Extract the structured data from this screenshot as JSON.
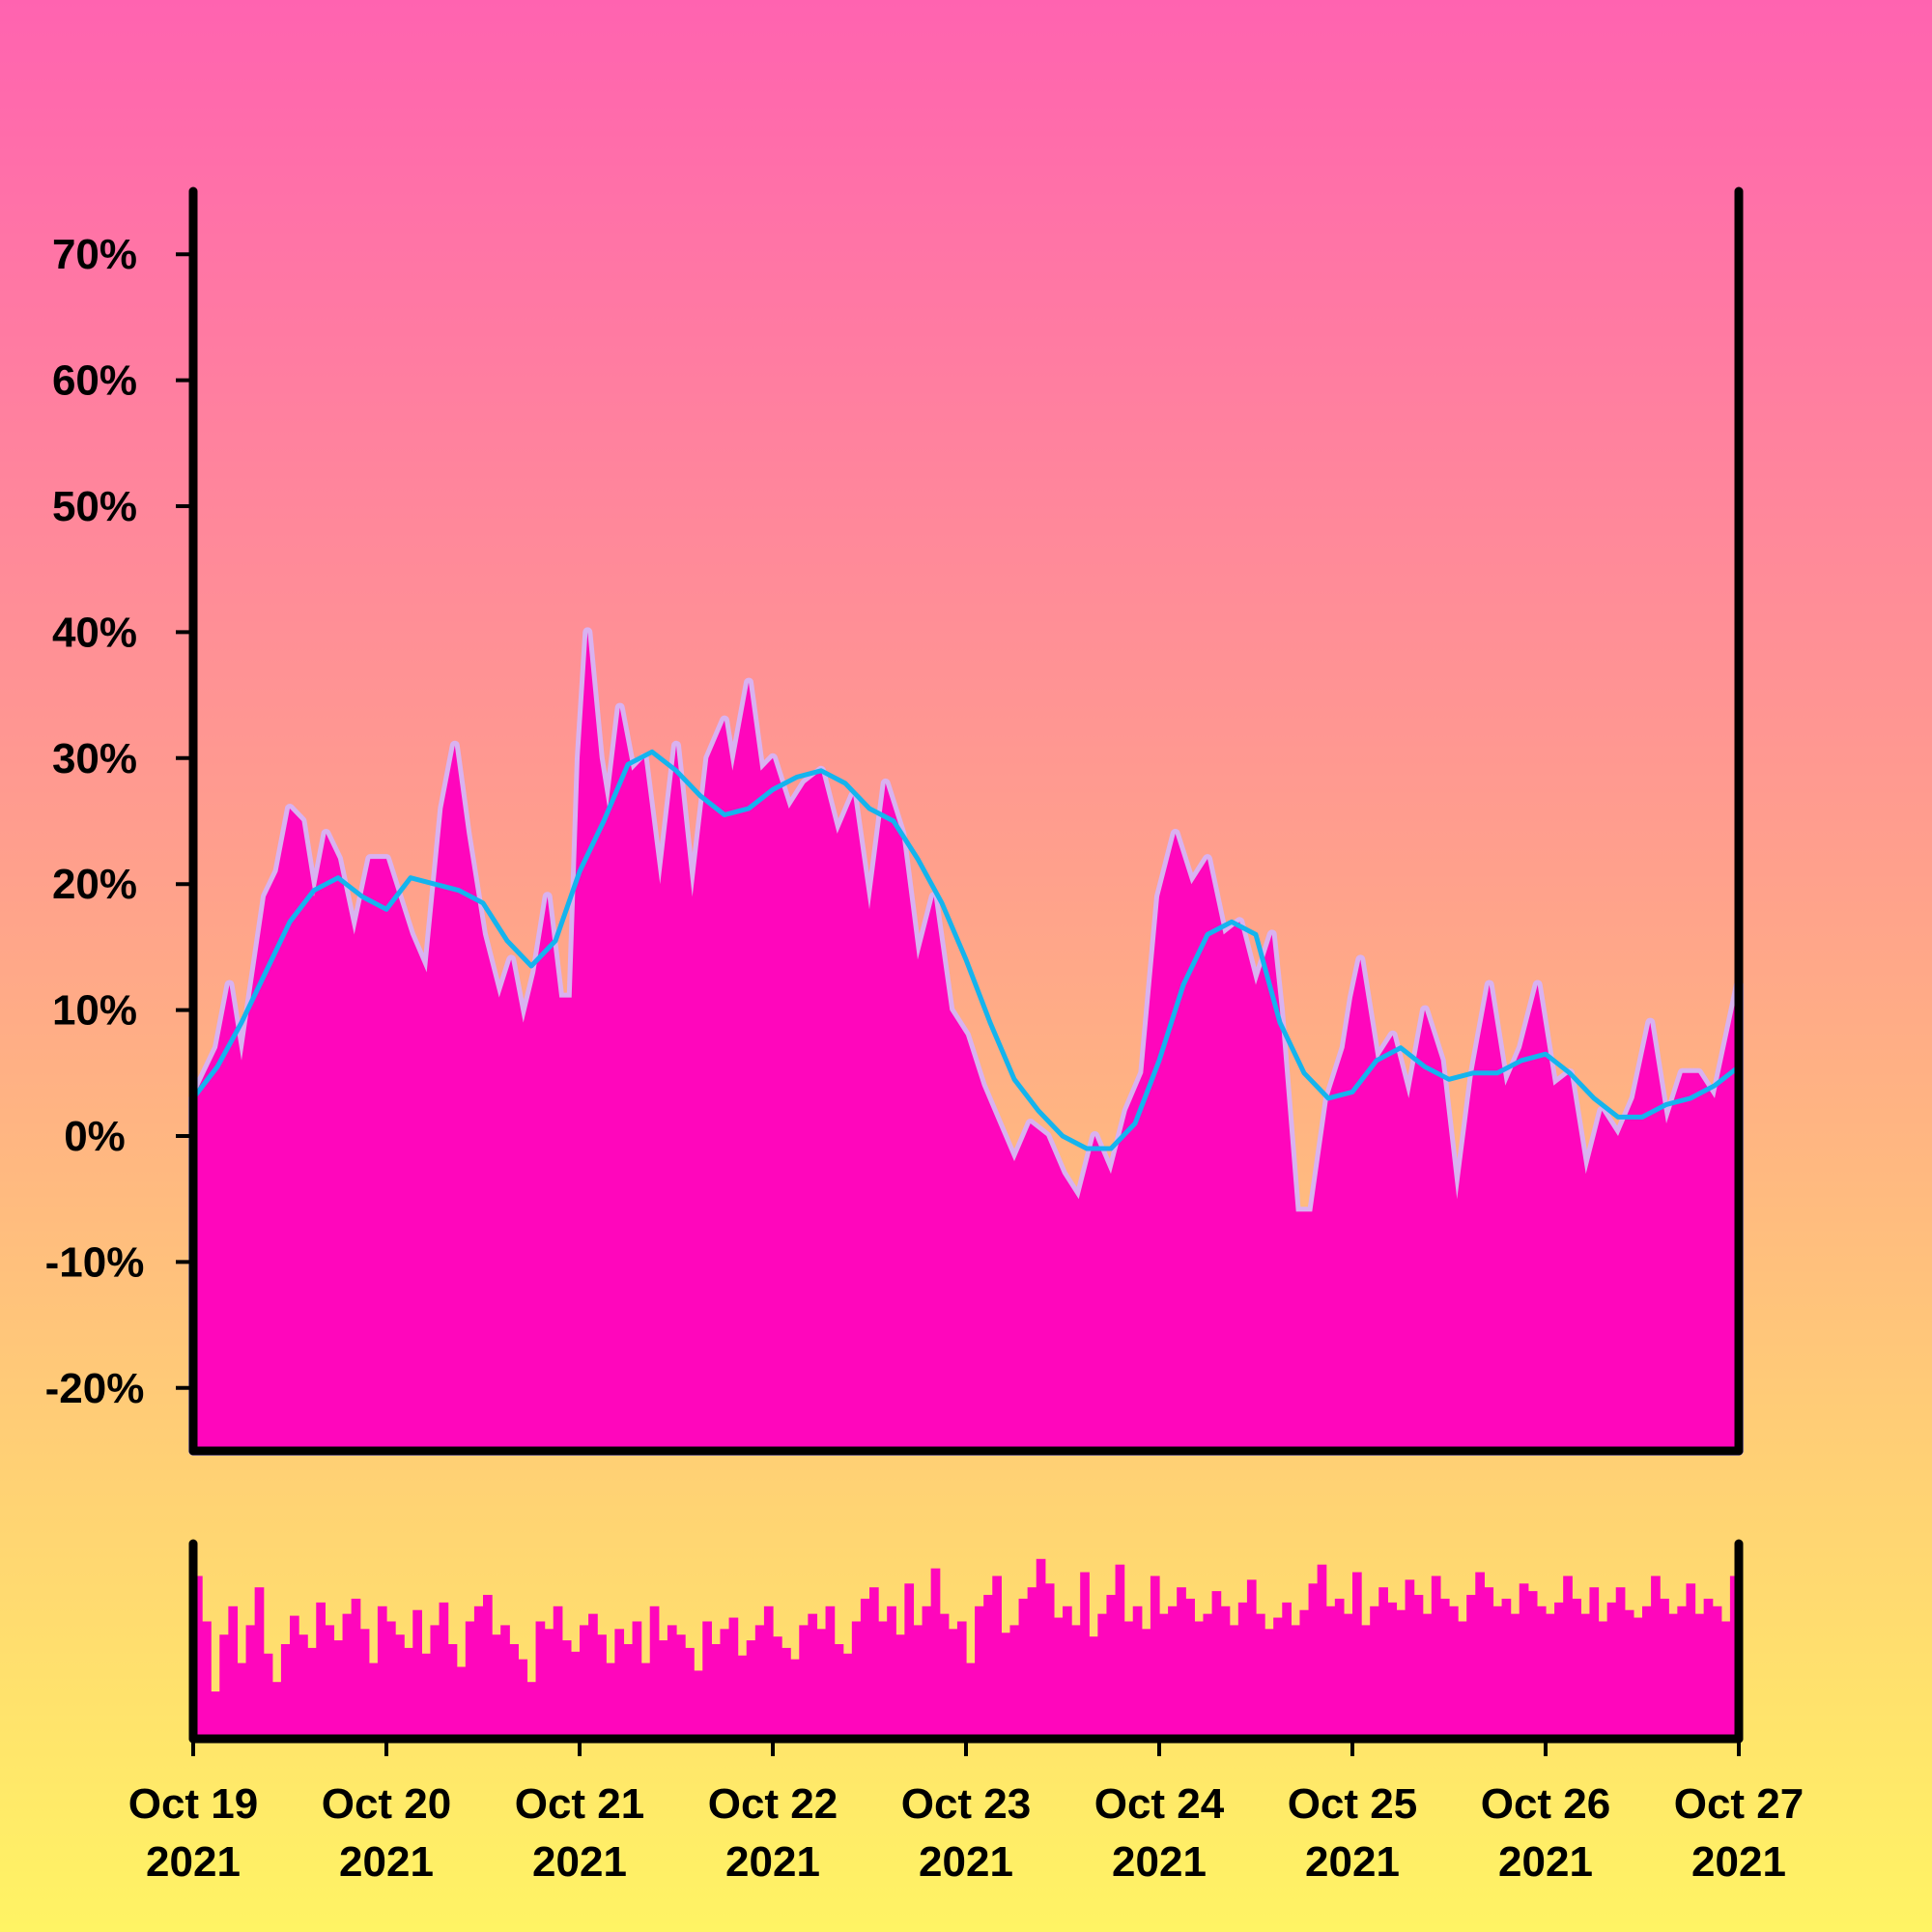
{
  "chart_data": [
    {
      "type": "area",
      "title": "",
      "xlabel": "",
      "ylabel": "",
      "x_start": "2021-10-19T00:00",
      "x_end": "2021-10-27T00:00",
      "ylim": [
        -25,
        75
      ],
      "y_ticks": [
        -20,
        -10,
        0,
        10,
        20,
        30,
        40,
        50,
        60,
        70
      ],
      "y_tick_labels": [
        "-20%",
        "-10%",
        "0%",
        "10%",
        "20%",
        "30%",
        "40%",
        "50%",
        "60%",
        "70%"
      ],
      "x_tick_labels": [
        {
          "month_day": "Oct 19",
          "year": "2021"
        },
        {
          "month_day": "Oct 20",
          "year": "2021"
        },
        {
          "month_day": "Oct 21",
          "year": "2021"
        },
        {
          "month_day": "Oct 22",
          "year": "2021"
        },
        {
          "month_day": "Oct 23",
          "year": "2021"
        },
        {
          "month_day": "Oct 24",
          "year": "2021"
        },
        {
          "month_day": "Oct 25",
          "year": "2021"
        },
        {
          "month_day": "Oct 26",
          "year": "2021"
        },
        {
          "month_day": "Oct 27",
          "year": "2021"
        }
      ],
      "series": [
        {
          "kind": "area",
          "points": [
            [
              "2021-10-19T00:00",
              3
            ],
            [
              "2021-10-19T03:00",
              7
            ],
            [
              "2021-10-19T04:30",
              12
            ],
            [
              "2021-10-19T06:00",
              6
            ],
            [
              "2021-10-19T09:00",
              19
            ],
            [
              "2021-10-19T10:30",
              21
            ],
            [
              "2021-10-19T12:00",
              26
            ],
            [
              "2021-10-19T13:30",
              25
            ],
            [
              "2021-10-19T15:00",
              19
            ],
            [
              "2021-10-19T16:30",
              24
            ],
            [
              "2021-10-19T18:00",
              22
            ],
            [
              "2021-10-19T20:00",
              16
            ],
            [
              "2021-10-19T22:00",
              22
            ],
            [
              "2021-10-20T00:00",
              22
            ],
            [
              "2021-10-20T03:00",
              16
            ],
            [
              "2021-10-20T05:00",
              13
            ],
            [
              "2021-10-20T07:00",
              26
            ],
            [
              "2021-10-20T08:30",
              31
            ],
            [
              "2021-10-20T10:00",
              24
            ],
            [
              "2021-10-20T12:00",
              16
            ],
            [
              "2021-10-20T14:00",
              11
            ],
            [
              "2021-10-20T15:30",
              14
            ],
            [
              "2021-10-20T17:00",
              9
            ],
            [
              "2021-10-20T18:30",
              13
            ],
            [
              "2021-10-20T20:00",
              19
            ],
            [
              "2021-10-20T21:30",
              11
            ],
            [
              "2021-10-20T23:00",
              11
            ],
            [
              "2021-10-21T00:00",
              30
            ],
            [
              "2021-10-21T01:00",
              40
            ],
            [
              "2021-10-21T02:30",
              30
            ],
            [
              "2021-10-21T03:30",
              26
            ],
            [
              "2021-10-21T05:00",
              34
            ],
            [
              "2021-10-21T06:30",
              29
            ],
            [
              "2021-10-21T08:00",
              30
            ],
            [
              "2021-10-21T10:00",
              20
            ],
            [
              "2021-10-21T12:00",
              31
            ],
            [
              "2021-10-21T14:00",
              19
            ],
            [
              "2021-10-21T16:00",
              30
            ],
            [
              "2021-10-21T18:00",
              33
            ],
            [
              "2021-10-21T19:00",
              29
            ],
            [
              "2021-10-21T21:00",
              36
            ],
            [
              "2021-10-21T22:30",
              29
            ],
            [
              "2021-10-22T00:00",
              30
            ],
            [
              "2021-10-22T02:00",
              26
            ],
            [
              "2021-10-22T04:00",
              28
            ],
            [
              "2021-10-22T06:00",
              29
            ],
            [
              "2021-10-22T08:00",
              24
            ],
            [
              "2021-10-22T10:00",
              27
            ],
            [
              "2021-10-22T12:00",
              18
            ],
            [
              "2021-10-22T14:00",
              28
            ],
            [
              "2021-10-22T16:00",
              24
            ],
            [
              "2021-10-22T18:00",
              14
            ],
            [
              "2021-10-22T20:00",
              19
            ],
            [
              "2021-10-22T22:00",
              10
            ],
            [
              "2021-10-23T00:00",
              8
            ],
            [
              "2021-10-23T02:00",
              4
            ],
            [
              "2021-10-23T04:00",
              1
            ],
            [
              "2021-10-23T06:00",
              -2
            ],
            [
              "2021-10-23T08:00",
              1
            ],
            [
              "2021-10-23T10:00",
              0
            ],
            [
              "2021-10-23T12:00",
              -3
            ],
            [
              "2021-10-23T14:00",
              -5
            ],
            [
              "2021-10-23T16:00",
              0
            ],
            [
              "2021-10-23T18:00",
              -3
            ],
            [
              "2021-10-23T20:00",
              2
            ],
            [
              "2021-10-23T22:00",
              5
            ],
            [
              "2021-10-24T00:00",
              19
            ],
            [
              "2021-10-24T02:00",
              24
            ],
            [
              "2021-10-24T04:00",
              20
            ],
            [
              "2021-10-24T06:00",
              22
            ],
            [
              "2021-10-24T08:00",
              16
            ],
            [
              "2021-10-24T10:00",
              17
            ],
            [
              "2021-10-24T12:00",
              12
            ],
            [
              "2021-10-24T14:00",
              16
            ],
            [
              "2021-10-24T15:00",
              10
            ],
            [
              "2021-10-24T17:00",
              -6
            ],
            [
              "2021-10-24T19:00",
              -6
            ],
            [
              "2021-10-24T21:00",
              3
            ],
            [
              "2021-10-24T23:00",
              7
            ],
            [
              "2021-10-25T00:00",
              11
            ],
            [
              "2021-10-25T01:00",
              14
            ],
            [
              "2021-10-25T03:00",
              6
            ],
            [
              "2021-10-25T05:00",
              8
            ],
            [
              "2021-10-25T07:00",
              3
            ],
            [
              "2021-10-25T09:00",
              10
            ],
            [
              "2021-10-25T11:00",
              6
            ],
            [
              "2021-10-25T13:00",
              -5
            ],
            [
              "2021-10-25T15:00",
              5
            ],
            [
              "2021-10-25T17:00",
              12
            ],
            [
              "2021-10-25T19:00",
              4
            ],
            [
              "2021-10-25T21:00",
              7
            ],
            [
              "2021-10-25T23:00",
              12
            ],
            [
              "2021-10-26T01:00",
              4
            ],
            [
              "2021-10-26T03:00",
              5
            ],
            [
              "2021-10-26T05:00",
              -3
            ],
            [
              "2021-10-26T07:00",
              2
            ],
            [
              "2021-10-26T09:00",
              0
            ],
            [
              "2021-10-26T11:00",
              3
            ],
            [
              "2021-10-26T13:00",
              9
            ],
            [
              "2021-10-26T15:00",
              1
            ],
            [
              "2021-10-26T17:00",
              5
            ],
            [
              "2021-10-26T19:00",
              5
            ],
            [
              "2021-10-26T21:00",
              3
            ],
            [
              "2021-10-26T23:00",
              9
            ],
            [
              "2021-10-27T00:00",
              12
            ]
          ]
        },
        {
          "kind": "line",
          "color": "#14b4ee",
          "points": [
            [
              "2021-10-19T00:00",
              3
            ],
            [
              "2021-10-19T03:00",
              5.5
            ],
            [
              "2021-10-19T06:00",
              9
            ],
            [
              "2021-10-19T09:00",
              13
            ],
            [
              "2021-10-19T12:00",
              17
            ],
            [
              "2021-10-19T15:00",
              19.5
            ],
            [
              "2021-10-19T18:00",
              20.5
            ],
            [
              "2021-10-19T21:00",
              19
            ],
            [
              "2021-10-20T00:00",
              18
            ],
            [
              "2021-10-20T03:00",
              20.5
            ],
            [
              "2021-10-20T06:00",
              20
            ],
            [
              "2021-10-20T09:00",
              19.5
            ],
            [
              "2021-10-20T12:00",
              18.5
            ],
            [
              "2021-10-20T15:00",
              15.5
            ],
            [
              "2021-10-20T18:00",
              13.5
            ],
            [
              "2021-10-20T21:00",
              15.5
            ],
            [
              "2021-10-21T00:00",
              21
            ],
            [
              "2021-10-21T03:00",
              25
            ],
            [
              "2021-10-21T06:00",
              29.5
            ],
            [
              "2021-10-21T09:00",
              30.5
            ],
            [
              "2021-10-21T12:00",
              29
            ],
            [
              "2021-10-21T15:00",
              27
            ],
            [
              "2021-10-21T18:00",
              25.5
            ],
            [
              "2021-10-21T21:00",
              26
            ],
            [
              "2021-10-22T00:00",
              27.5
            ],
            [
              "2021-10-22T03:00",
              28.5
            ],
            [
              "2021-10-22T06:00",
              29
            ],
            [
              "2021-10-22T09:00",
              28
            ],
            [
              "2021-10-22T12:00",
              26
            ],
            [
              "2021-10-22T15:00",
              25
            ],
            [
              "2021-10-22T18:00",
              22
            ],
            [
              "2021-10-22T21:00",
              18.5
            ],
            [
              "2021-10-23T00:00",
              14
            ],
            [
              "2021-10-23T03:00",
              9
            ],
            [
              "2021-10-23T06:00",
              4.5
            ],
            [
              "2021-10-23T09:00",
              2
            ],
            [
              "2021-10-23T12:00",
              0
            ],
            [
              "2021-10-23T15:00",
              -1
            ],
            [
              "2021-10-23T18:00",
              -1
            ],
            [
              "2021-10-23T21:00",
              1
            ],
            [
              "2021-10-24T00:00",
              6
            ],
            [
              "2021-10-24T03:00",
              12
            ],
            [
              "2021-10-24T06:00",
              16
            ],
            [
              "2021-10-24T09:00",
              17
            ],
            [
              "2021-10-24T12:00",
              16
            ],
            [
              "2021-10-24T15:00",
              9
            ],
            [
              "2021-10-24T18:00",
              5
            ],
            [
              "2021-10-24T21:00",
              3
            ],
            [
              "2021-10-25T00:00",
              3.5
            ],
            [
              "2021-10-25T03:00",
              6
            ],
            [
              "2021-10-25T06:00",
              7
            ],
            [
              "2021-10-25T09:00",
              5.5
            ],
            [
              "2021-10-25T12:00",
              4.5
            ],
            [
              "2021-10-25T15:00",
              5
            ],
            [
              "2021-10-25T18:00",
              5
            ],
            [
              "2021-10-25T21:00",
              6
            ],
            [
              "2021-10-26T00:00",
              6.5
            ],
            [
              "2021-10-26T03:00",
              5
            ],
            [
              "2021-10-26T06:00",
              3
            ],
            [
              "2021-10-26T09:00",
              1.5
            ],
            [
              "2021-10-26T12:00",
              1.5
            ],
            [
              "2021-10-26T15:00",
              2.5
            ],
            [
              "2021-10-26T18:00",
              3
            ],
            [
              "2021-10-26T21:00",
              4
            ],
            [
              "2021-10-27T00:00",
              5.5
            ]
          ]
        }
      ]
    },
    {
      "type": "bar",
      "title": "",
      "ylabel": "",
      "note_levels": "relative bar heights, 0 = bottom axis, 1 = top of panel",
      "values": [
        0.86,
        0.62,
        0.25,
        0.55,
        0.7,
        0.4,
        0.6,
        0.8,
        0.45,
        0.3,
        0.5,
        0.65,
        0.55,
        0.48,
        0.72,
        0.6,
        0.52,
        0.66,
        0.74,
        0.58,
        0.4,
        0.7,
        0.62,
        0.55,
        0.48,
        0.68,
        0.45,
        0.6,
        0.72,
        0.5,
        0.38,
        0.62,
        0.7,
        0.76,
        0.55,
        0.6,
        0.5,
        0.42,
        0.3,
        0.62,
        0.58,
        0.7,
        0.52,
        0.46,
        0.6,
        0.66,
        0.55,
        0.4,
        0.58,
        0.5,
        0.62,
        0.4,
        0.7,
        0.52,
        0.6,
        0.55,
        0.48,
        0.36,
        0.62,
        0.5,
        0.58,
        0.64,
        0.44,
        0.52,
        0.6,
        0.7,
        0.54,
        0.48,
        0.42,
        0.6,
        0.66,
        0.58,
        0.7,
        0.5,
        0.45,
        0.62,
        0.74,
        0.8,
        0.62,
        0.7,
        0.55,
        0.82,
        0.6,
        0.7,
        0.9,
        0.66,
        0.58,
        0.62,
        0.4,
        0.7,
        0.76,
        0.86,
        0.56,
        0.6,
        0.74,
        0.8,
        0.95,
        0.82,
        0.64,
        0.7,
        0.6,
        0.88,
        0.54,
        0.66,
        0.76,
        0.92,
        0.62,
        0.7,
        0.58,
        0.86,
        0.66,
        0.7,
        0.8,
        0.74,
        0.62,
        0.66,
        0.78,
        0.7,
        0.6,
        0.72,
        0.84,
        0.66,
        0.58,
        0.64,
        0.72,
        0.6,
        0.68,
        0.82,
        0.92,
        0.7,
        0.74,
        0.66,
        0.88,
        0.6,
        0.7,
        0.8,
        0.72,
        0.68,
        0.84,
        0.76,
        0.66,
        0.86,
        0.74,
        0.7,
        0.62,
        0.76,
        0.88,
        0.8,
        0.7,
        0.74,
        0.66,
        0.82,
        0.78,
        0.7,
        0.66,
        0.72,
        0.86,
        0.74,
        0.66,
        0.8,
        0.62,
        0.72,
        0.8,
        0.68,
        0.64,
        0.7,
        0.86,
        0.74,
        0.66,
        0.7,
        0.82,
        0.66,
        0.74,
        0.7,
        0.62,
        0.86
      ]
    }
  ]
}
